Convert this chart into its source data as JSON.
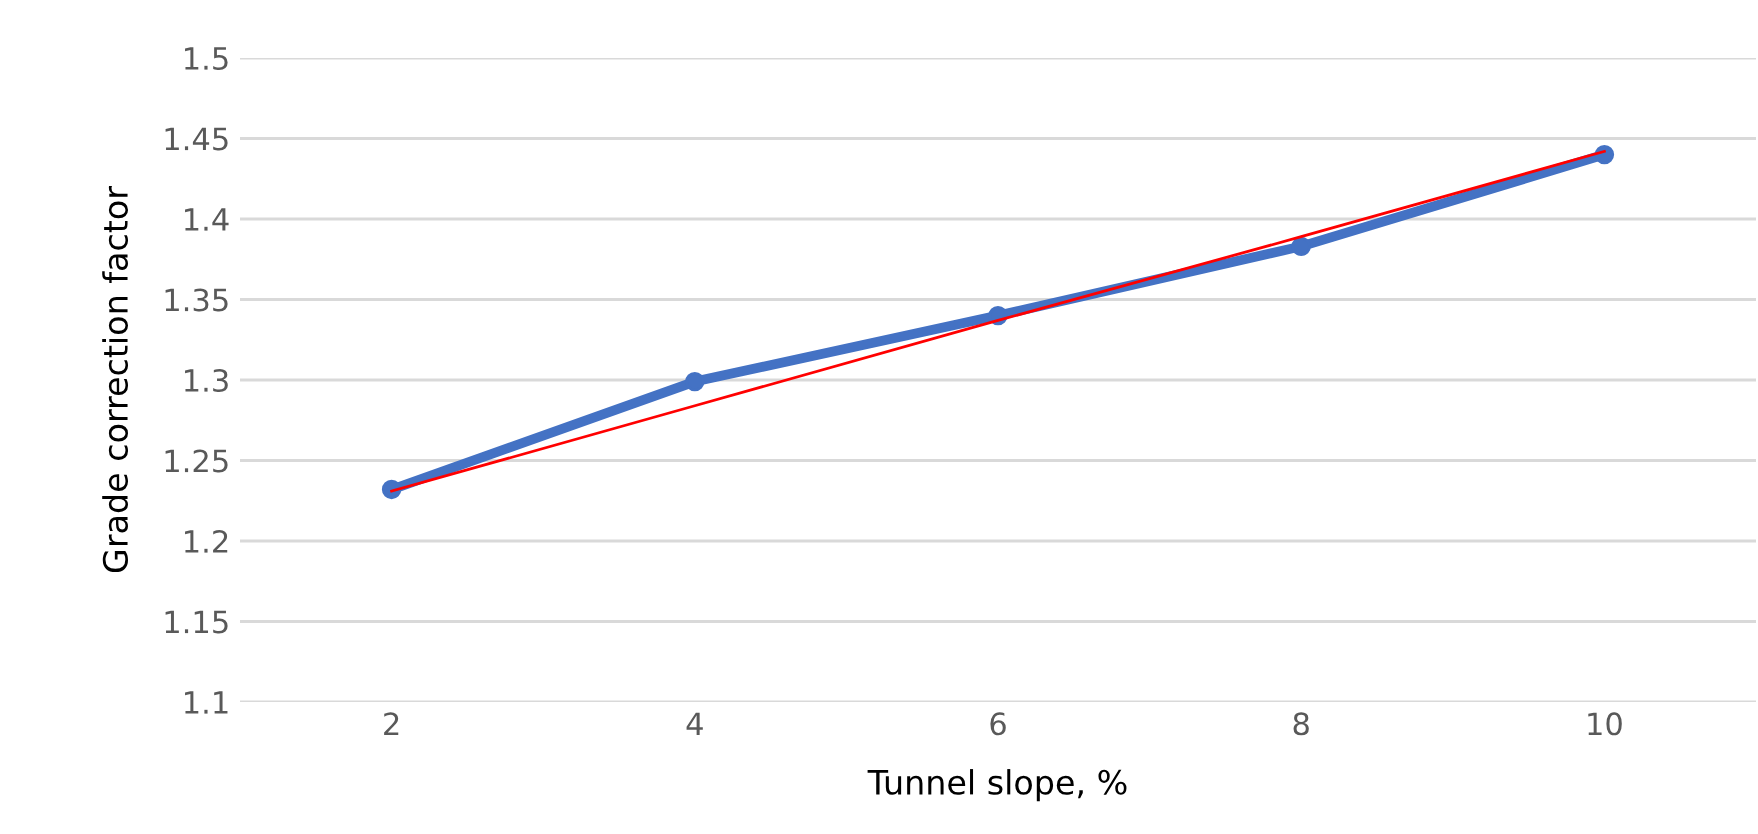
{
  "chart_data": {
    "type": "line",
    "xlabel": "Tunnel slope, %",
    "ylabel": "Grade correction factor",
    "categories": [
      "2",
      "4",
      "6",
      "8",
      "10"
    ],
    "series": [
      {
        "color": "#4472c4",
        "values": [
          1.232,
          1.299,
          1.34,
          1.383,
          1.44
        ],
        "marker": "circle"
      },
      {
        "color": "#ff0000",
        "values": [
          1.231,
          1.284,
          1.337,
          1.389,
          1.442
        ],
        "marker": "none"
      }
    ],
    "ylim": [
      1.1,
      1.5
    ],
    "yticks": [
      1.1,
      1.15,
      1.2,
      1.25,
      1.3,
      1.35,
      1.4,
      1.45,
      1.5
    ],
    "grid": "y",
    "line_style": "solid"
  }
}
